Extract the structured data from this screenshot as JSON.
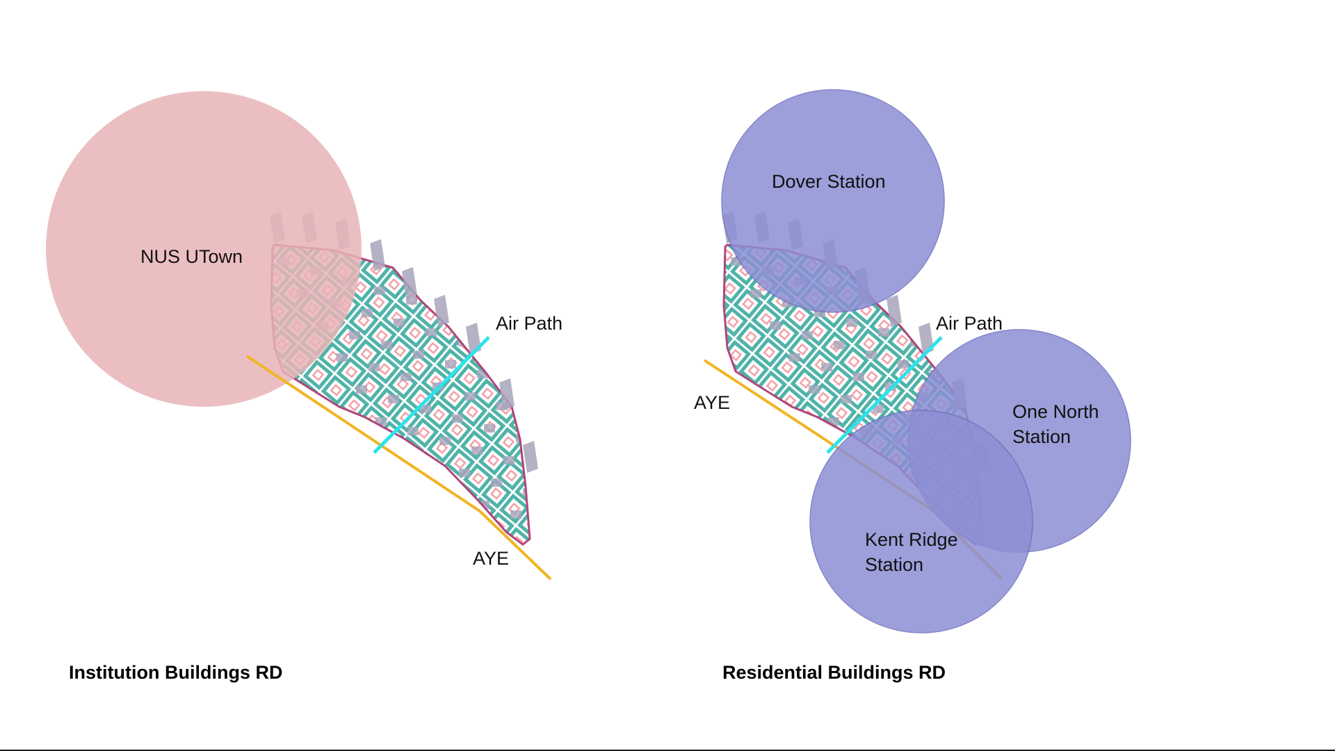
{
  "colors": {
    "institution_zone": "#e8b4b6",
    "station_zone": "#8d8fd4",
    "site_outline": "#b0457a",
    "site_pattern": "#4fb3a8",
    "building": "#a8a4bc",
    "expressway": "#f0b524",
    "air_path": "#2de2ea"
  },
  "left_panel": {
    "zone_label": "NUS UTown",
    "air_path_label": "Air Path",
    "road_label": "AYE",
    "caption": "Institution Buildings RD"
  },
  "right_panel": {
    "dover_label": "Dover Station",
    "one_north_label_line1": "One North",
    "one_north_label_line2": "Station",
    "kent_ridge_label_line1": "Kent Ridge",
    "kent_ridge_label_line2": "Station",
    "air_path_label": "Air Path",
    "road_label": "AYE",
    "caption": "Residential Buildings RD"
  }
}
